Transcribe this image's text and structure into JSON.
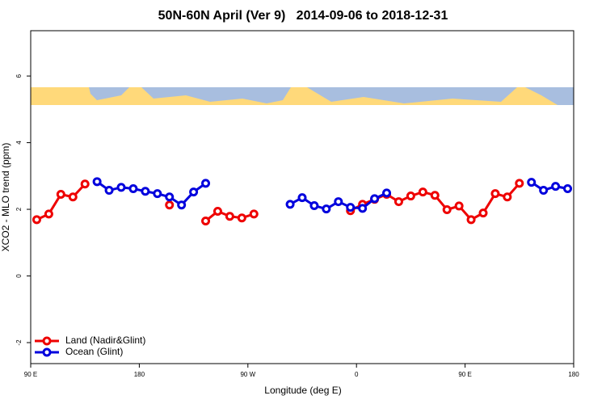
{
  "chart_data": {
    "type": "line",
    "title": "50N-60N April (Ver 9)   2014-09-06 to 2018-12-31",
    "x_label": "Longitude (deg E)",
    "y_label": "XCO2 - MLO trend (ppm)",
    "x": [
      95,
      105,
      115,
      125,
      135,
      145,
      155,
      165,
      175,
      185,
      195,
      205,
      215,
      225,
      235,
      245,
      255,
      265,
      275,
      285,
      295,
      305,
      315,
      325,
      335,
      345,
      355,
      365,
      375,
      385,
      395,
      405,
      415,
      425,
      435,
      445,
      455,
      465,
      475,
      485,
      495,
      505,
      515,
      525,
      535
    ],
    "series": [
      {
        "name": "Land (Nadir&Glint)",
        "color": "#ee0000",
        "values": [
          1.69,
          1.86,
          2.45,
          2.37,
          2.76,
          null,
          null,
          null,
          null,
          null,
          null,
          2.13,
          null,
          null,
          1.65,
          1.94,
          1.79,
          1.74,
          1.86,
          null,
          null,
          null,
          null,
          null,
          null,
          null,
          1.96,
          2.15,
          2.3,
          2.45,
          2.23,
          2.4,
          2.52,
          2.42,
          1.99,
          2.1,
          1.69,
          1.89,
          2.47,
          2.37,
          2.78,
          null,
          null,
          null,
          null
        ]
      },
      {
        "name": "Ocean (Glint)",
        "color": "#0000dd",
        "values": [
          null,
          null,
          null,
          null,
          null,
          2.83,
          2.57,
          2.66,
          2.62,
          2.54,
          2.47,
          2.37,
          2.13,
          2.52,
          2.78,
          null,
          null,
          null,
          null,
          null,
          null,
          2.15,
          2.35,
          2.11,
          2.01,
          2.23,
          2.06,
          2.03,
          2.32,
          2.49,
          null,
          null,
          null,
          null,
          null,
          null,
          null,
          null,
          null,
          null,
          null,
          2.81,
          2.57,
          2.69,
          2.62
        ]
      }
    ],
    "xlim": [
      90,
      540
    ],
    "xticks": [
      {
        "value": 90,
        "label": "90 E"
      },
      180,
      {
        "value": 270,
        "label": "90 W"
      },
      {
        "value": 360,
        "label": "0"
      },
      {
        "value": 450,
        "label": "90 E"
      },
      {
        "value": 540,
        "label": "180"
      }
    ],
    "ylim": [
      -2.63,
      7.36
    ],
    "yticks": [
      -2,
      0,
      2,
      4,
      6
    ],
    "legend": "bottom-left"
  }
}
